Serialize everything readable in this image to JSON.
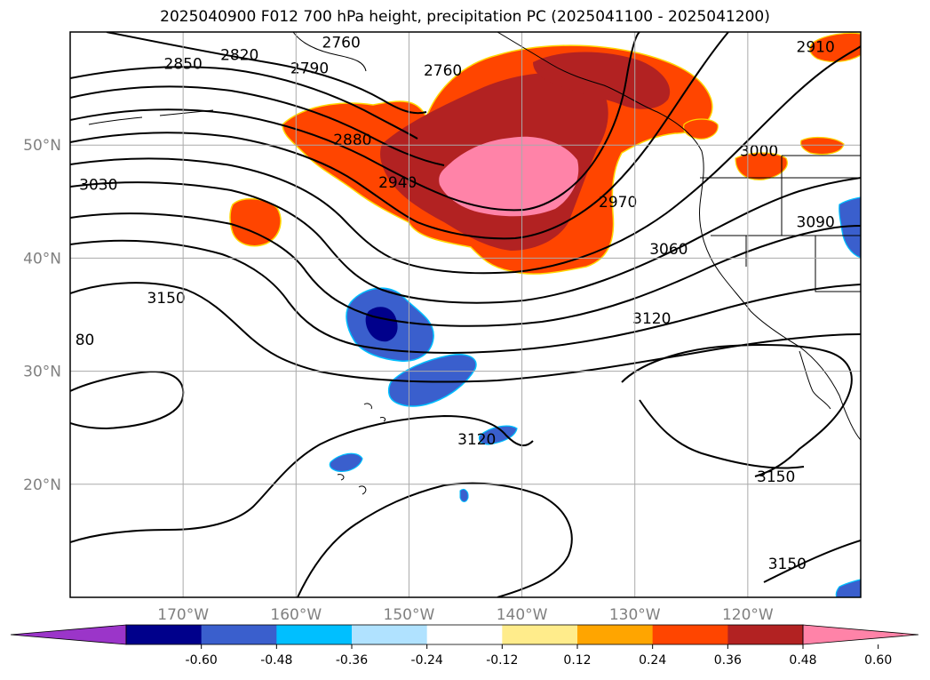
{
  "title": "2025040900 F012 700 hPa height, precipitation PC (2025041100 - 2025041200)",
  "axes": {
    "lat_labels": [
      "50°N",
      "40°N",
      "30°N",
      "20°N"
    ],
    "lat_values": [
      50,
      40,
      30,
      20
    ],
    "lon_labels": [
      "170°W",
      "160°W",
      "150°W",
      "140°W",
      "130°W",
      "120°W"
    ],
    "lon_values": [
      -170,
      -160,
      -150,
      -140,
      -130,
      -120
    ],
    "lon_range": [
      -180,
      -110
    ],
    "lat_range": [
      10,
      60
    ],
    "grid": true
  },
  "contour_labels": [
    {
      "text": "2760",
      "lon": -156.0,
      "lat": 59.1
    },
    {
      "text": "2820",
      "lon": -165.0,
      "lat": 58.0
    },
    {
      "text": "2850",
      "lon": -170.0,
      "lat": 57.2
    },
    {
      "text": "2790",
      "lon": -158.8,
      "lat": 56.8
    },
    {
      "text": "2760",
      "lon": -147.0,
      "lat": 56.6
    },
    {
      "text": "2910",
      "lon": -114.0,
      "lat": 58.7
    },
    {
      "text": "2880",
      "lon": -155.0,
      "lat": 50.5
    },
    {
      "text": "2940",
      "lon": -151.0,
      "lat": 46.7
    },
    {
      "text": "3000",
      "lon": -119.0,
      "lat": 49.5
    },
    {
      "text": "3030",
      "lon": -177.5,
      "lat": 46.5
    },
    {
      "text": "2970",
      "lon": -131.5,
      "lat": 45.0
    },
    {
      "text": "3090",
      "lon": -114.0,
      "lat": 43.2
    },
    {
      "text": "3060",
      "lon": -127.0,
      "lat": 40.8
    },
    {
      "text": "3150",
      "lon": -171.5,
      "lat": 36.5
    },
    {
      "text": "3120",
      "lon": -128.5,
      "lat": 34.7
    },
    {
      "text": "80",
      "lon": -178.7,
      "lat": 32.8
    },
    {
      "text": "3120",
      "lon": -144.0,
      "lat": 24.0
    },
    {
      "text": "3150",
      "lon": -117.5,
      "lat": 20.7
    },
    {
      "text": "3150",
      "lon": -116.5,
      "lat": 13.0
    }
  ],
  "colorbar": {
    "ticks": [
      "-0.60",
      "-0.48",
      "-0.36",
      "-0.24",
      "-0.12",
      "0.12",
      "0.24",
      "0.36",
      "0.48",
      "0.60"
    ],
    "colors": [
      "#9b35c9",
      "#00008b",
      "#3a5fcd",
      "#00bfff",
      "#b0e2ff",
      "#ffffff",
      "#ffec8b",
      "#ffa500",
      "#ff4500",
      "#b22222",
      "#ff83a8"
    ]
  }
}
